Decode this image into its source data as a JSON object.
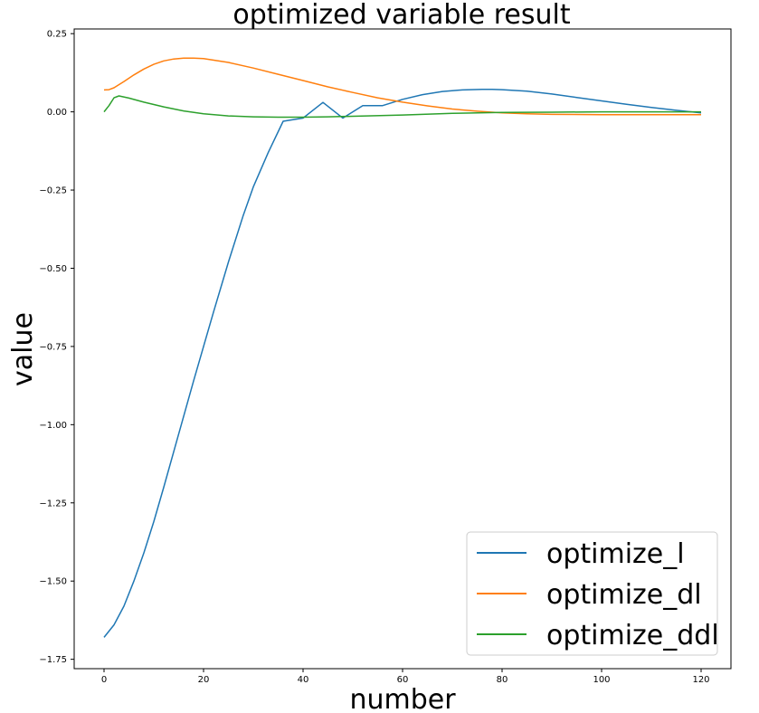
{
  "chart_data": {
    "type": "line",
    "title": "optimized variable result",
    "xlabel": "number",
    "ylabel": "value",
    "xlim": [
      -6,
      126
    ],
    "ylim": [
      -1.78,
      0.265
    ],
    "xticks": [
      0,
      20,
      40,
      60,
      80,
      100,
      120
    ],
    "yticks": [
      0.25,
      0.0,
      -0.25,
      -0.5,
      -0.75,
      -1.0,
      -1.25,
      -1.5,
      -1.75
    ],
    "ytick_labels": [
      "0.25",
      "0.00",
      "−0.25",
      "−0.50",
      "−0.75",
      "−1.00",
      "−1.25",
      "−1.50",
      "−1.75"
    ],
    "grid": false,
    "legend_position": "lower-right",
    "series": [
      {
        "name": "optimize_l",
        "color": "#1f77b4",
        "x": [
          0,
          2,
          4,
          6,
          8,
          10,
          12,
          15,
          18,
          20,
          22,
          25,
          28,
          30,
          33,
          36,
          40,
          44,
          48,
          52,
          56,
          60,
          64,
          68,
          72,
          76,
          78,
          80,
          85,
          90,
          95,
          100,
          105,
          110,
          115,
          120
        ],
        "y": [
          -1.68,
          -1.64,
          -1.58,
          -1.5,
          -1.41,
          -1.31,
          -1.2,
          -1.03,
          -0.86,
          -0.75,
          -0.64,
          -0.48,
          -0.33,
          -0.24,
          -0.13,
          -0.03,
          -0.02,
          0.03,
          -0.02,
          0.02,
          0.02,
          0.04,
          0.055,
          0.065,
          0.07,
          0.072,
          0.072,
          0.071,
          0.066,
          0.057,
          0.046,
          0.035,
          0.024,
          0.014,
          0.005,
          -0.003
        ]
      },
      {
        "name": "optimize_dl",
        "color": "#ff7f0e",
        "x": [
          0,
          1,
          2,
          4,
          6,
          8,
          10,
          12,
          14,
          16,
          18,
          20,
          25,
          30,
          35,
          40,
          45,
          50,
          55,
          60,
          65,
          70,
          75,
          80,
          85,
          90,
          100,
          110,
          120
        ],
        "y": [
          0.07,
          0.071,
          0.077,
          0.097,
          0.118,
          0.137,
          0.152,
          0.163,
          0.169,
          0.172,
          0.172,
          0.17,
          0.158,
          0.14,
          0.12,
          0.1,
          0.08,
          0.062,
          0.045,
          0.031,
          0.019,
          0.009,
          0.002,
          -0.003,
          -0.006,
          -0.008,
          -0.009,
          -0.009,
          -0.009
        ]
      },
      {
        "name": "optimize_ddl",
        "color": "#2ca02c",
        "x": [
          0,
          1,
          2,
          3,
          5,
          8,
          12,
          16,
          20,
          25,
          30,
          35,
          40,
          45,
          50,
          60,
          70,
          80,
          90,
          100,
          110,
          120
        ],
        "y": [
          0.0,
          0.02,
          0.045,
          0.051,
          0.044,
          0.031,
          0.016,
          0.003,
          -0.006,
          -0.013,
          -0.016,
          -0.017,
          -0.017,
          -0.016,
          -0.014,
          -0.01,
          -0.005,
          -0.002,
          -0.001,
          0.0,
          0.0,
          0.0
        ]
      }
    ]
  }
}
